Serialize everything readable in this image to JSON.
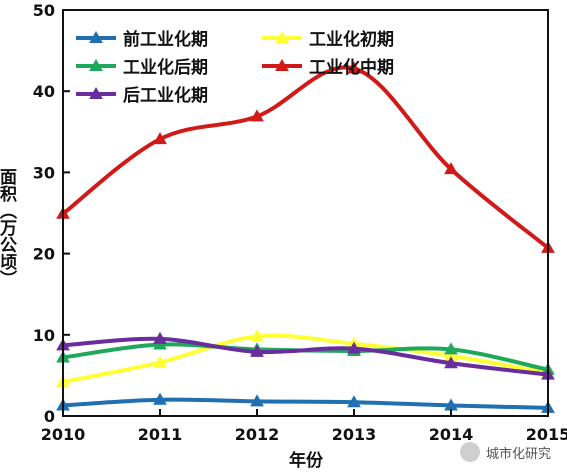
{
  "chart_data": {
    "type": "line",
    "xlabel": "年份",
    "ylabel": "面积（万公顷）",
    "xlim": [
      2010,
      2015
    ],
    "ylim": [
      0,
      50
    ],
    "x_ticks": [
      "2010",
      "2011",
      "2012",
      "2013",
      "2014",
      "2015"
    ],
    "y_ticks": [
      "0",
      "10",
      "20",
      "30",
      "40",
      "50"
    ],
    "x": [
      2010,
      2011,
      2012,
      2013,
      2014,
      2015
    ],
    "legend_position": "top-left",
    "series": [
      {
        "name": "前工业化期",
        "color": "#1f6fb2",
        "values": [
          1.3,
          2.0,
          1.8,
          1.7,
          1.3,
          1.0
        ]
      },
      {
        "name": "工业化初期",
        "color": "#ffff33",
        "values": [
          4.2,
          6.6,
          9.8,
          8.9,
          7.4,
          5.3
        ]
      },
      {
        "name": "工业化后期",
        "color": "#1fa85a",
        "values": [
          7.2,
          8.8,
          8.2,
          8.0,
          8.2,
          5.7
        ]
      },
      {
        "name": "工业化中期",
        "color": "#d11a17",
        "values": [
          24.9,
          34.1,
          36.9,
          42.8,
          30.4,
          20.7
        ]
      },
      {
        "name": "后工业化期",
        "color": "#6a2d9e",
        "values": [
          8.7,
          9.5,
          7.9,
          8.3,
          6.5,
          5.1
        ]
      }
    ]
  },
  "watermark": {
    "text": "城市化研究",
    "icon": "wechat-icon"
  }
}
